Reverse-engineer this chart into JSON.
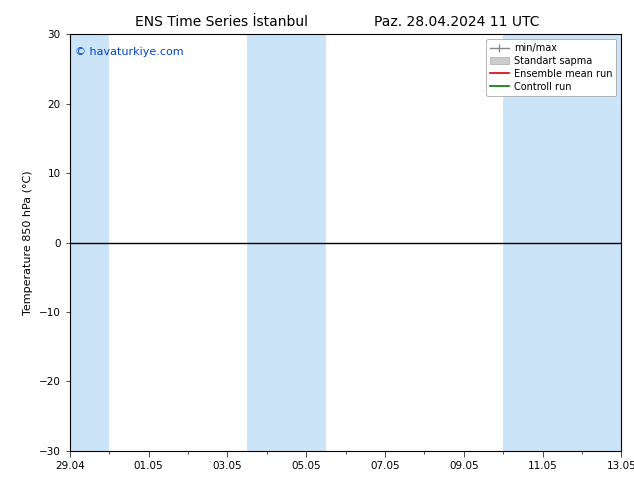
{
  "title_left": "ENS Time Series İstanbul",
  "title_right": "Paz. 28.04.2024 11 UTC",
  "ylabel": "Temperature 850 hPa (°C)",
  "watermark": "© havaturkiye.com",
  "ylim": [
    -30,
    30
  ],
  "yticks": [
    -30,
    -20,
    -10,
    0,
    10,
    20,
    30
  ],
  "x_tick_labels": [
    "29.04",
    "01.05",
    "03.05",
    "05.05",
    "07.05",
    "09.05",
    "11.05",
    "13.05"
  ],
  "x_tick_positions": [
    0,
    2,
    4,
    6,
    8,
    10,
    12,
    14
  ],
  "background_color": "#ffffff",
  "plot_bg_color": "#ffffff",
  "shaded_band_color": "#cce4f7",
  "shaded_intervals": [
    [
      0,
      1
    ],
    [
      4.5,
      6.5
    ],
    [
      11,
      14
    ]
  ],
  "zero_line_color": "#000000",
  "title_fontsize": 10,
  "tick_fontsize": 7.5,
  "label_fontsize": 8,
  "watermark_color": "#0044cc",
  "watermark_fontsize": 8,
  "legend_fontsize": 7
}
